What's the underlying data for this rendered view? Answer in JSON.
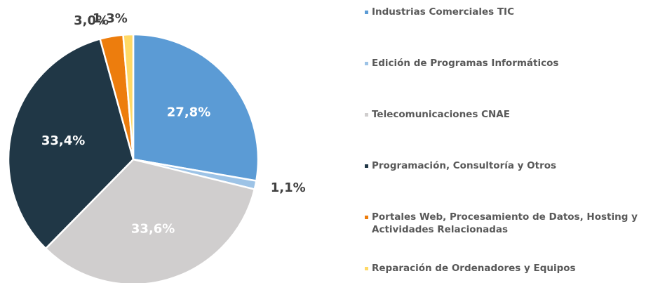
{
  "chart_data": {
    "type": "pie",
    "categories": [
      "Industrias Comerciales TIC",
      "Edición de Programas Informáticos",
      "Telecomunicaciones CNAE",
      "Programación, Consultoría y Otros",
      "Portales Web, Procesamiento de Datos, Hosting y Actividades Relacionadas",
      "Reparación de Ordenadores y Equipos"
    ],
    "values": [
      27.8,
      1.1,
      33.6,
      33.4,
      3.0,
      1.3
    ],
    "value_labels": [
      "27,8%",
      "1,1%",
      "33,6%",
      "33,4%",
      "3,0%",
      "1,3%"
    ],
    "colors": [
      "#5b9bd5",
      "#9dc3e6",
      "#d0cece",
      "#203746",
      "#ed7d0d",
      "#ffd966"
    ],
    "legend": "right"
  }
}
